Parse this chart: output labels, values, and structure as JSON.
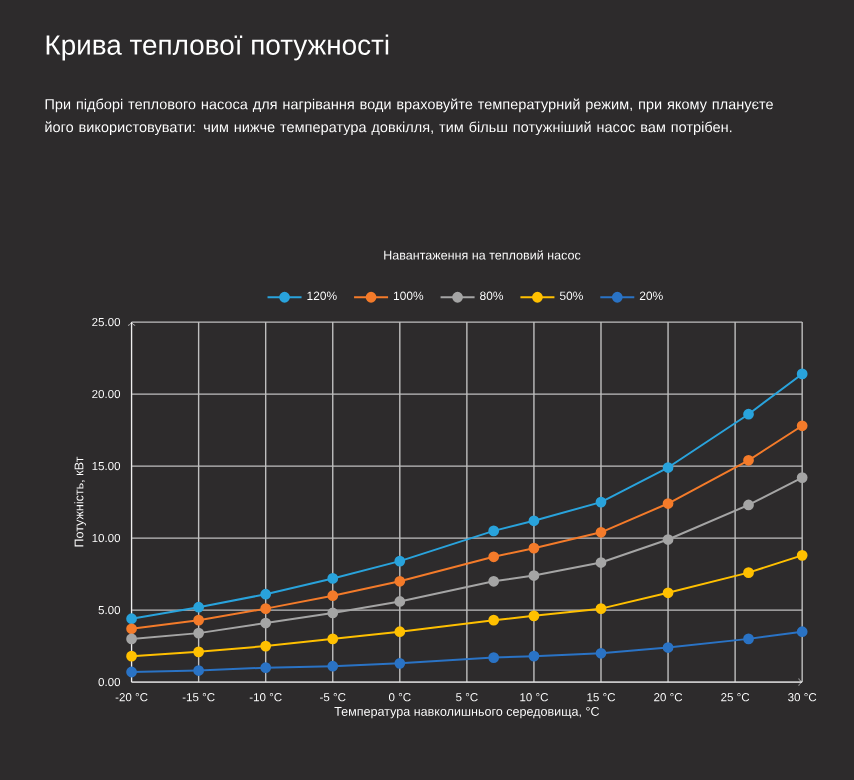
{
  "chart_data": {
    "type": "line",
    "title": "Крива теплової потужності",
    "subtitle": "При підборі теплового насоса для нагрівання води враховуйте температурний режим, при якому плануєте його використовувати: чим нижче температура довкілля, тим більш потужніший насос вам потрібен.",
    "legend_title": "Навантаження на тепловий насос",
    "xlabel": "Температура навколишнього середовища, °C",
    "ylabel": "Потужність, кВт",
    "x": [
      -20,
      -15,
      -10,
      -5,
      0,
      7,
      10,
      15,
      20,
      26,
      30
    ],
    "series": [
      {
        "name": "120%",
        "color": "#29a3dc",
        "values": [
          4.4,
          5.2,
          6.1,
          7.2,
          8.4,
          10.5,
          11.2,
          12.5,
          14.9,
          18.6,
          21.4
        ]
      },
      {
        "name": "100%",
        "color": "#f47b2a",
        "values": [
          3.7,
          4.3,
          5.1,
          6.0,
          7.0,
          8.7,
          9.3,
          10.4,
          12.4,
          15.4,
          17.8
        ]
      },
      {
        "name": "80%",
        "color": "#a5a5a5",
        "values": [
          3.0,
          3.4,
          4.1,
          4.8,
          5.6,
          7.0,
          7.4,
          8.3,
          9.9,
          12.3,
          14.2
        ]
      },
      {
        "name": "50%",
        "color": "#ffc000",
        "values": [
          1.8,
          2.1,
          2.5,
          3.0,
          3.5,
          4.3,
          4.6,
          5.1,
          6.2,
          7.6,
          8.8
        ]
      },
      {
        "name": "20%",
        "color": "#2a73c5",
        "values": [
          0.7,
          0.8,
          1.0,
          1.1,
          1.3,
          1.7,
          1.8,
          2.0,
          2.4,
          3.0,
          3.5
        ]
      }
    ],
    "xlim": [
      -20,
      30
    ],
    "ylim": [
      0,
      25
    ],
    "xticks": [
      {
        "value": -20,
        "label": "-20 °C"
      },
      {
        "value": -15,
        "label": "-15 °C"
      },
      {
        "value": -10,
        "label": "-10 °C"
      },
      {
        "value": -5,
        "label": "-5 °C"
      },
      {
        "value": 0,
        "label": "0 °C"
      },
      {
        "value": 5,
        "label": "5 °C"
      },
      {
        "value": 10,
        "label": "10 °C"
      },
      {
        "value": 15,
        "label": "15 °C"
      },
      {
        "value": 20,
        "label": "20 °C"
      },
      {
        "value": 25,
        "label": "25 °C"
      },
      {
        "value": 30,
        "label": "30 °C"
      }
    ],
    "yticks": [
      {
        "value": 0,
        "label": "0.00"
      },
      {
        "value": 5,
        "label": "5.00"
      },
      {
        "value": 10,
        "label": "10.00"
      },
      {
        "value": 15,
        "label": "15.00"
      },
      {
        "value": 20,
        "label": "20.00"
      },
      {
        "value": 25,
        "label": "25.00"
      }
    ],
    "grid": true,
    "legend": "top",
    "marker": "circle",
    "line_style": "solid"
  }
}
